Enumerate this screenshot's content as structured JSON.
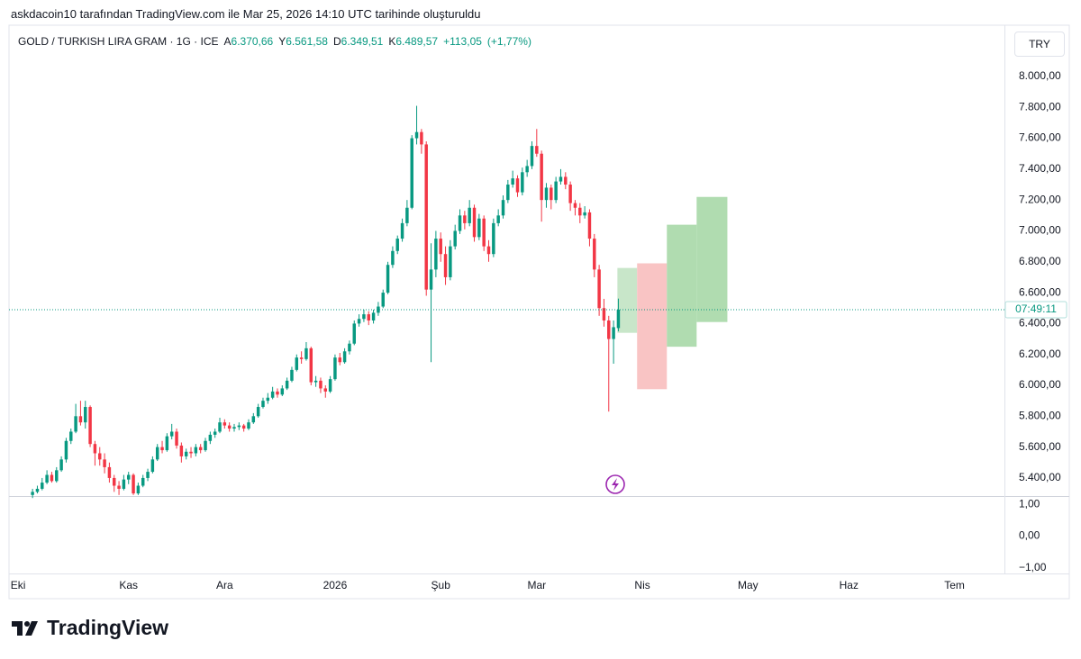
{
  "header": {
    "caption": "askdacoin10 tarafından TradingView.com ile Mar 25, 2026 14:10 UTC tarihinde oluşturuldu"
  },
  "footer": {
    "brand": "TradingView"
  },
  "chart_data": {
    "type": "candlestick",
    "symbol": "GOLD / TURKISH LIRA GRAM · 1G · ICE",
    "currency": "TRY",
    "legend": [
      {
        "key": "A",
        "value": 6370.66,
        "label": "6.370,66"
      },
      {
        "key": "Y",
        "value": 6561.58,
        "label": "6.561,58"
      },
      {
        "key": "D",
        "value": 6349.51,
        "label": "6.349,51"
      },
      {
        "key": "K",
        "value": 6489.57,
        "label": "6.489,57"
      }
    ],
    "change": {
      "value": 113.05,
      "label": "+113,05"
    },
    "change_pct": {
      "value": 1.77,
      "label": "(+1,77%)"
    },
    "countdown": "07:49:11",
    "up_color": "#089981",
    "down_color": "#f23645",
    "grid": false,
    "xlim": [
      -1.9,
      205.4
    ],
    "xticks": [
      {
        "value": 0,
        "label": "Eki"
      },
      {
        "value": 23,
        "label": "Kas"
      },
      {
        "value": 43,
        "label": "Ara"
      },
      {
        "value": 66,
        "label": "2026"
      },
      {
        "value": 88,
        "label": "Şub"
      },
      {
        "value": 108,
        "label": "Mar"
      },
      {
        "value": 130,
        "label": "Nis"
      },
      {
        "value": 152,
        "label": "May"
      },
      {
        "value": 173,
        "label": "Haz"
      },
      {
        "value": 195,
        "label": "Tem"
      }
    ],
    "ylim": [
      5283,
      8332
    ],
    "yticks": [
      {
        "value": 5400,
        "label": "5.400,00"
      },
      {
        "value": 5600,
        "label": "5.600,00"
      },
      {
        "value": 5800,
        "label": "5.800,00"
      },
      {
        "value": 6000,
        "label": "6.000,00"
      },
      {
        "value": 6200,
        "label": "6.200,00"
      },
      {
        "value": 6400,
        "label": "6.400,00"
      },
      {
        "value": 6600,
        "label": "6.600,00"
      },
      {
        "value": 6800,
        "label": "6.800,00"
      },
      {
        "value": 7000,
        "label": "7.000,00"
      },
      {
        "value": 7200,
        "label": "7.200,00"
      },
      {
        "value": 7400,
        "label": "7.400,00"
      },
      {
        "value": 7600,
        "label": "7.600,00"
      },
      {
        "value": 7800,
        "label": "7.800,00"
      },
      {
        "value": 8000,
        "label": "8.000,00"
      }
    ],
    "lower_pane": {
      "ylim": [
        -1.17,
        1.23
      ],
      "yticks": [
        {
          "value": 1,
          "label": "1,00"
        },
        {
          "value": 0,
          "label": "0,00"
        },
        {
          "value": -1,
          "label": "−1,00"
        }
      ]
    },
    "x": [
      3,
      4,
      5,
      6,
      7,
      8,
      9,
      10,
      11,
      12,
      13,
      14,
      15,
      16,
      17,
      18,
      19,
      20,
      21,
      22,
      23,
      24,
      25,
      26,
      27,
      28,
      29,
      30,
      31,
      32,
      33,
      34,
      35,
      36,
      37,
      38,
      39,
      40,
      41,
      42,
      43,
      44,
      45,
      46,
      47,
      48,
      49,
      50,
      51,
      52,
      53,
      54,
      55,
      56,
      57,
      58,
      59,
      60,
      61,
      62,
      63,
      64,
      65,
      66,
      67,
      68,
      69,
      70,
      71,
      72,
      73,
      74,
      75,
      76,
      77,
      78,
      79,
      80,
      81,
      82,
      83,
      84,
      85,
      86,
      87,
      88,
      89,
      90,
      91,
      92,
      93,
      94,
      95,
      96,
      97,
      98,
      99,
      100,
      101,
      102,
      103,
      104,
      105,
      106,
      107,
      108,
      109,
      110,
      111,
      112,
      113,
      114,
      115,
      116,
      117,
      118,
      119,
      120,
      121,
      122,
      123,
      124,
      125
    ],
    "ohlc": [
      [
        5290,
        5330,
        5270,
        5310
      ],
      [
        5310,
        5350,
        5300,
        5330
      ],
      [
        5330,
        5400,
        5320,
        5370
      ],
      [
        5370,
        5450,
        5360,
        5420
      ],
      [
        5420,
        5440,
        5370,
        5380
      ],
      [
        5380,
        5470,
        5370,
        5450
      ],
      [
        5450,
        5540,
        5440,
        5520
      ],
      [
        5520,
        5660,
        5500,
        5640
      ],
      [
        5640,
        5720,
        5620,
        5700
      ],
      [
        5700,
        5880,
        5690,
        5800
      ],
      [
        5800,
        5900,
        5740,
        5760
      ],
      [
        5760,
        5900,
        5720,
        5860
      ],
      [
        5860,
        5870,
        5600,
        5620
      ],
      [
        5620,
        5640,
        5480,
        5560
      ],
      [
        5560,
        5600,
        5480,
        5520
      ],
      [
        5520,
        5560,
        5430,
        5470
      ],
      [
        5470,
        5500,
        5370,
        5400
      ],
      [
        5400,
        5420,
        5310,
        5350
      ],
      [
        5350,
        5380,
        5290,
        5330
      ],
      [
        5330,
        5420,
        5320,
        5390
      ],
      [
        5390,
        5440,
        5360,
        5420
      ],
      [
        5420,
        5430,
        5290,
        5300
      ],
      [
        5300,
        5370,
        5290,
        5350
      ],
      [
        5350,
        5420,
        5340,
        5400
      ],
      [
        5400,
        5460,
        5380,
        5440
      ],
      [
        5440,
        5540,
        5430,
        5520
      ],
      [
        5520,
        5620,
        5510,
        5600
      ],
      [
        5600,
        5640,
        5560,
        5580
      ],
      [
        5580,
        5690,
        5570,
        5670
      ],
      [
        5670,
        5750,
        5650,
        5700
      ],
      [
        5700,
        5720,
        5590,
        5610
      ],
      [
        5610,
        5630,
        5500,
        5540
      ],
      [
        5540,
        5590,
        5520,
        5570
      ],
      [
        5570,
        5600,
        5530,
        5560
      ],
      [
        5560,
        5620,
        5540,
        5600
      ],
      [
        5600,
        5620,
        5560,
        5580
      ],
      [
        5580,
        5660,
        5570,
        5640
      ],
      [
        5640,
        5700,
        5620,
        5680
      ],
      [
        5680,
        5720,
        5660,
        5700
      ],
      [
        5700,
        5790,
        5690,
        5760
      ],
      [
        5760,
        5780,
        5720,
        5740
      ],
      [
        5740,
        5760,
        5700,
        5720
      ],
      [
        5720,
        5750,
        5700,
        5730
      ],
      [
        5730,
        5760,
        5710,
        5740
      ],
      [
        5740,
        5750,
        5700,
        5720
      ],
      [
        5720,
        5780,
        5710,
        5760
      ],
      [
        5760,
        5820,
        5750,
        5800
      ],
      [
        5800,
        5880,
        5790,
        5860
      ],
      [
        5860,
        5920,
        5850,
        5900
      ],
      [
        5900,
        5950,
        5880,
        5920
      ],
      [
        5920,
        5990,
        5910,
        5960
      ],
      [
        5960,
        5980,
        5920,
        5940
      ],
      [
        5940,
        6000,
        5930,
        5980
      ],
      [
        5980,
        6050,
        5970,
        6030
      ],
      [
        6030,
        6120,
        6020,
        6100
      ],
      [
        6100,
        6200,
        6090,
        6180
      ],
      [
        6180,
        6220,
        6140,
        6170
      ],
      [
        6170,
        6280,
        6160,
        6240
      ],
      [
        6240,
        6250,
        6000,
        6020
      ],
      [
        6020,
        6060,
        5990,
        6030
      ],
      [
        6030,
        6050,
        5950,
        5980
      ],
      [
        5980,
        6000,
        5920,
        5960
      ],
      [
        5960,
        6060,
        5950,
        6040
      ],
      [
        6040,
        6200,
        6030,
        6180
      ],
      [
        6180,
        6210,
        6130,
        6150
      ],
      [
        6150,
        6240,
        6140,
        6220
      ],
      [
        6220,
        6290,
        6200,
        6270
      ],
      [
        6270,
        6420,
        6260,
        6400
      ],
      [
        6400,
        6460,
        6380,
        6430
      ],
      [
        6430,
        6490,
        6410,
        6460
      ],
      [
        6460,
        6480,
        6390,
        6420
      ],
      [
        6420,
        6490,
        6400,
        6470
      ],
      [
        6470,
        6540,
        6450,
        6510
      ],
      [
        6510,
        6620,
        6500,
        6600
      ],
      [
        6600,
        6800,
        6590,
        6780
      ],
      [
        6780,
        6900,
        6760,
        6870
      ],
      [
        6870,
        6970,
        6850,
        6950
      ],
      [
        6950,
        7080,
        6930,
        7050
      ],
      [
        7050,
        7200,
        7030,
        7150
      ],
      [
        7150,
        7620,
        7140,
        7600
      ],
      [
        7600,
        7810,
        7560,
        7640
      ],
      [
        7640,
        7660,
        7500,
        7560
      ],
      [
        7560,
        7580,
        6580,
        6620
      ],
      [
        6620,
        6920,
        6150,
        6750
      ],
      [
        6750,
        7000,
        6700,
        6950
      ],
      [
        6950,
        6990,
        6800,
        6850
      ],
      [
        6850,
        6900,
        6650,
        6700
      ],
      [
        6700,
        6940,
        6680,
        6900
      ],
      [
        6900,
        7040,
        6880,
        7000
      ],
      [
        7000,
        7140,
        6980,
        7100
      ],
      [
        7100,
        7130,
        7010,
        7050
      ],
      [
        7050,
        7200,
        7030,
        7150
      ],
      [
        7150,
        7170,
        6930,
        6960
      ],
      [
        6960,
        7110,
        6940,
        7080
      ],
      [
        7080,
        7100,
        6870,
        6900
      ],
      [
        6900,
        6940,
        6800,
        6850
      ],
      [
        6850,
        7080,
        6830,
        7050
      ],
      [
        7050,
        7140,
        7030,
        7100
      ],
      [
        7100,
        7230,
        7080,
        7200
      ],
      [
        7200,
        7330,
        7180,
        7300
      ],
      [
        7300,
        7390,
        7280,
        7340
      ],
      [
        7340,
        7360,
        7220,
        7250
      ],
      [
        7250,
        7410,
        7230,
        7380
      ],
      [
        7380,
        7460,
        7350,
        7420
      ],
      [
        7420,
        7580,
        7400,
        7550
      ],
      [
        7550,
        7660,
        7480,
        7500
      ],
      [
        7500,
        7520,
        7060,
        7200
      ],
      [
        7200,
        7310,
        7150,
        7280
      ],
      [
        7280,
        7300,
        7140,
        7200
      ],
      [
        7200,
        7350,
        7180,
        7320
      ],
      [
        7320,
        7400,
        7300,
        7350
      ],
      [
        7350,
        7380,
        7270,
        7300
      ],
      [
        7300,
        7320,
        7130,
        7180
      ],
      [
        7180,
        7200,
        7100,
        7150
      ],
      [
        7150,
        7180,
        7050,
        7100
      ],
      [
        7100,
        7160,
        7080,
        7120
      ],
      [
        7120,
        7140,
        6900,
        6950
      ],
      [
        6950,
        6980,
        6700,
        6750
      ],
      [
        6750,
        6780,
        6450,
        6500
      ],
      [
        6500,
        6560,
        6380,
        6420
      ],
      [
        6420,
        6450,
        5830,
        6300
      ],
      [
        6300,
        6420,
        6140,
        6376.52
      ],
      [
        6370.66,
        6561.58,
        6349.51,
        6489.57
      ]
    ],
    "drawings": [
      {
        "x": [
          124.8,
          128.9
        ],
        "y": [
          6340,
          6760
        ],
        "color": "#c8e6c9"
      },
      {
        "x": [
          128.9,
          135.1
        ],
        "y": [
          5975,
          6790
        ],
        "color": "#f9c4c4"
      },
      {
        "x": [
          135.1,
          141.3
        ],
        "y": [
          6250,
          7040
        ],
        "color": "#b0dcb0"
      },
      {
        "x": [
          141.3,
          147.7
        ],
        "y": [
          6410,
          7220
        ],
        "color": "#b0dcb0"
      }
    ]
  }
}
